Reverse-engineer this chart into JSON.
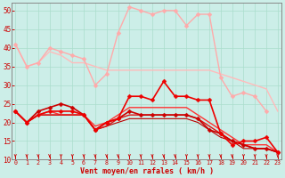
{
  "xlabel": "Vent moyen/en rafales ( km/h )",
  "bg_color": "#cceee8",
  "x": [
    0,
    1,
    2,
    3,
    4,
    5,
    6,
    7,
    8,
    9,
    10,
    11,
    12,
    13,
    14,
    15,
    16,
    17,
    18,
    19,
    20,
    21,
    22,
    23
  ],
  "ylim": [
    10,
    52
  ],
  "xlim": [
    -0.3,
    23.3
  ],
  "yticks": [
    10,
    15,
    20,
    25,
    30,
    35,
    40,
    45,
    50
  ],
  "series": [
    {
      "y": [
        41,
        35,
        36,
        40,
        39,
        38,
        37,
        30,
        33,
        44,
        51,
        50,
        49,
        50,
        50,
        46,
        49,
        49,
        32,
        27,
        28,
        27,
        23,
        null
      ],
      "color": "#ffaaaa",
      "lw": 1.0,
      "marker": "D",
      "ms": 2.5,
      "zorder": 3
    },
    {
      "y": [
        41,
        35,
        36,
        39,
        38,
        36,
        36,
        35,
        34,
        34,
        34,
        34,
        34,
        34,
        34,
        34,
        34,
        34,
        33,
        32,
        31,
        30,
        29,
        23
      ],
      "color": "#ffbbbb",
      "lw": 1.0,
      "marker": null,
      "zorder": 2
    },
    {
      "y": [
        23,
        20,
        22,
        23,
        22,
        22,
        22,
        19,
        20,
        22,
        24,
        24,
        24,
        24,
        24,
        24,
        22,
        20,
        18,
        16,
        14,
        14,
        14,
        12
      ],
      "color": "#ff3333",
      "lw": 1.0,
      "marker": null,
      "zorder": 4
    },
    {
      "y": [
        23,
        20,
        22,
        22,
        22,
        22,
        22,
        18,
        19,
        21,
        22,
        22,
        22,
        22,
        22,
        22,
        21,
        19,
        17,
        15,
        14,
        13,
        13,
        12
      ],
      "color": "#dd1111",
      "lw": 1.0,
      "marker": null,
      "zorder": 4
    },
    {
      "y": [
        23,
        20,
        23,
        24,
        25,
        24,
        22,
        18,
        20,
        21,
        23,
        22,
        22,
        22,
        22,
        22,
        21,
        18,
        17,
        15,
        14,
        13,
        13,
        12
      ],
      "color": "#cc0000",
      "lw": 1.2,
      "marker": "D",
      "ms": 2.5,
      "zorder": 5
    },
    {
      "y": [
        23,
        20,
        22,
        23,
        23,
        23,
        22,
        18,
        20,
        21,
        27,
        27,
        26,
        31,
        27,
        27,
        26,
        26,
        17,
        14,
        15,
        15,
        16,
        12
      ],
      "color": "#ee0000",
      "lw": 1.2,
      "marker": "D",
      "ms": 2.5,
      "zorder": 5
    },
    {
      "y": [
        23,
        20,
        22,
        22,
        22,
        22,
        22,
        18,
        19,
        20,
        21,
        21,
        21,
        21,
        21,
        21,
        20,
        18,
        16,
        15,
        13,
        13,
        13,
        12
      ],
      "color": "#bb0000",
      "lw": 0.8,
      "marker": null,
      "zorder": 3
    }
  ],
  "arrow_color": "#cc0000",
  "tick_color": "#cc0000",
  "label_color": "#cc0000",
  "grid_color": "#aaddcc",
  "spine_color": "#888888"
}
